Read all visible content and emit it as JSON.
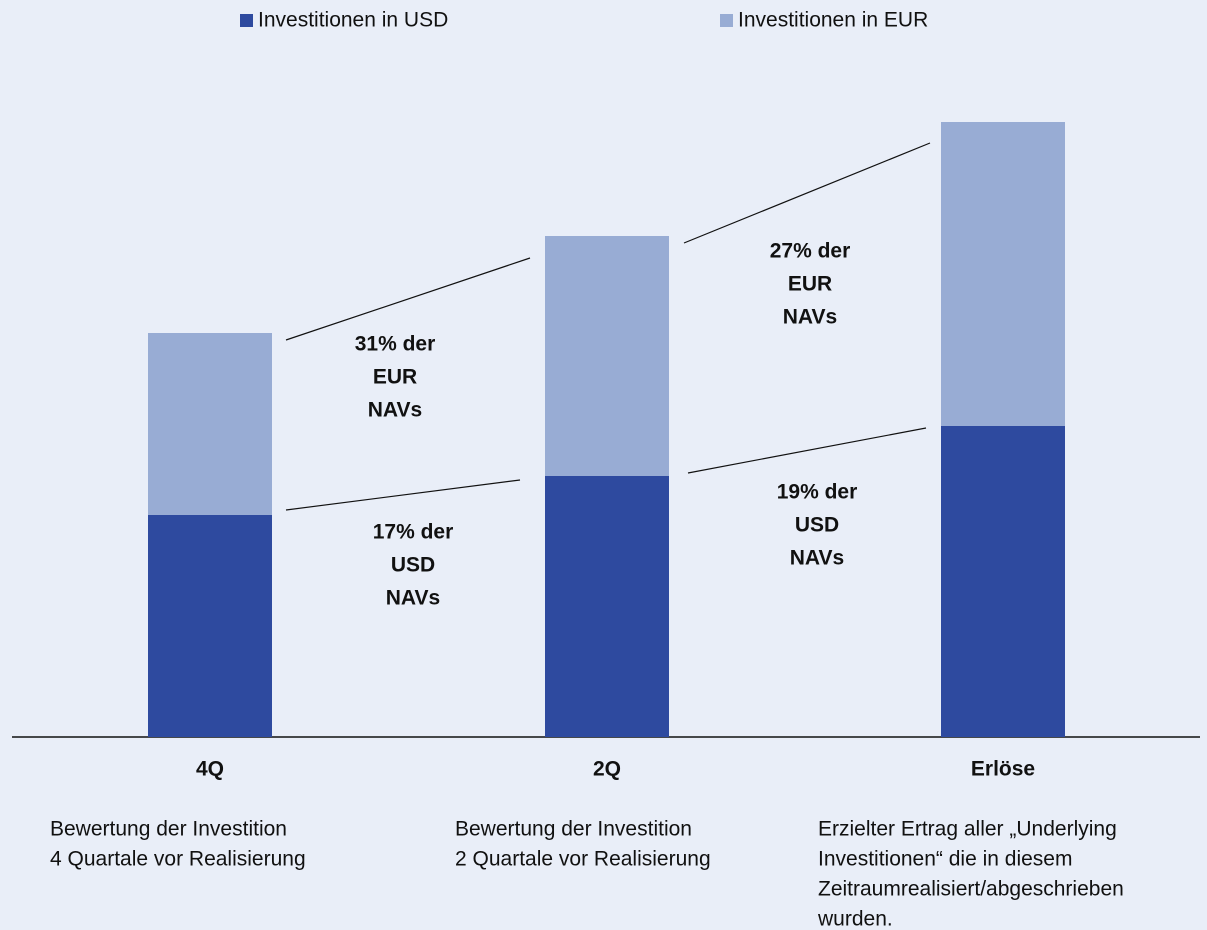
{
  "chart_data": {
    "type": "stacked_bar",
    "categories": [
      "4Q",
      "2Q",
      "Erlöse"
    ],
    "descriptions": [
      [
        "Bewertung der Investition",
        "4 Quartale vor Realisierung"
      ],
      [
        "Bewertung der Investition",
        "2 Quartale vor Realisierung"
      ],
      [
        "Erzielter Ertrag aller „Underlying",
        "Investitionen“ die in diesem",
        "Zeitraumrealisiert/abgeschrieben",
        "wurden."
      ]
    ],
    "series": [
      {
        "name": "Investitionen in USD",
        "color": "#2e4a9f",
        "values": [
          222,
          261,
          311
        ]
      },
      {
        "name": "Investitionen in EUR",
        "color": "#98acd4",
        "values": [
          182,
          240,
          304
        ]
      }
    ],
    "ylim": [
      0,
      700
    ],
    "annotations": [
      {
        "lines": [
          "31% der",
          "EUR",
          "NAVs"
        ]
      },
      {
        "lines": [
          "17% der",
          "USD",
          "NAVs"
        ]
      },
      {
        "lines": [
          "27% der",
          "EUR",
          "NAVs"
        ]
      },
      {
        "lines": [
          "19% der",
          "USD",
          "NAVs"
        ]
      }
    ]
  }
}
